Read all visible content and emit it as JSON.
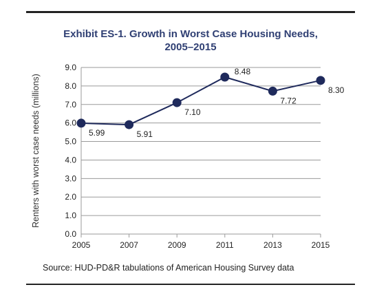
{
  "chart_data": {
    "type": "line",
    "title_line1": "Exhibit ES-1. Growth in Worst Case Housing Needs,",
    "title_line2": "2005–2015",
    "ylabel": "Renters with worst case needs (millions)",
    "xlabel": "",
    "x": [
      2005,
      2007,
      2009,
      2011,
      2013,
      2015
    ],
    "x_tick_labels": [
      "2005",
      "2007",
      "2009",
      "2011",
      "2013",
      "2015"
    ],
    "y_tick_labels": [
      "0.0",
      "1.0",
      "2.0",
      "3.0",
      "4.0",
      "5.0",
      "6.0",
      "7.0",
      "8.0",
      "9.0"
    ],
    "y_ticks": [
      0,
      1,
      2,
      3,
      4,
      5,
      6,
      7,
      8,
      9
    ],
    "ylim": [
      0,
      9
    ],
    "grid": true,
    "series": [
      {
        "values": [
          5.99,
          5.91,
          7.1,
          8.48,
          7.72,
          8.3
        ],
        "data_labels": [
          "5.99",
          "5.91",
          "7.10",
          "8.48",
          "7.72",
          "8.30"
        ],
        "color": "#1f2a5c"
      }
    ],
    "source": "Source: HUD-PD&R tabulations of American Housing Survey data"
  }
}
